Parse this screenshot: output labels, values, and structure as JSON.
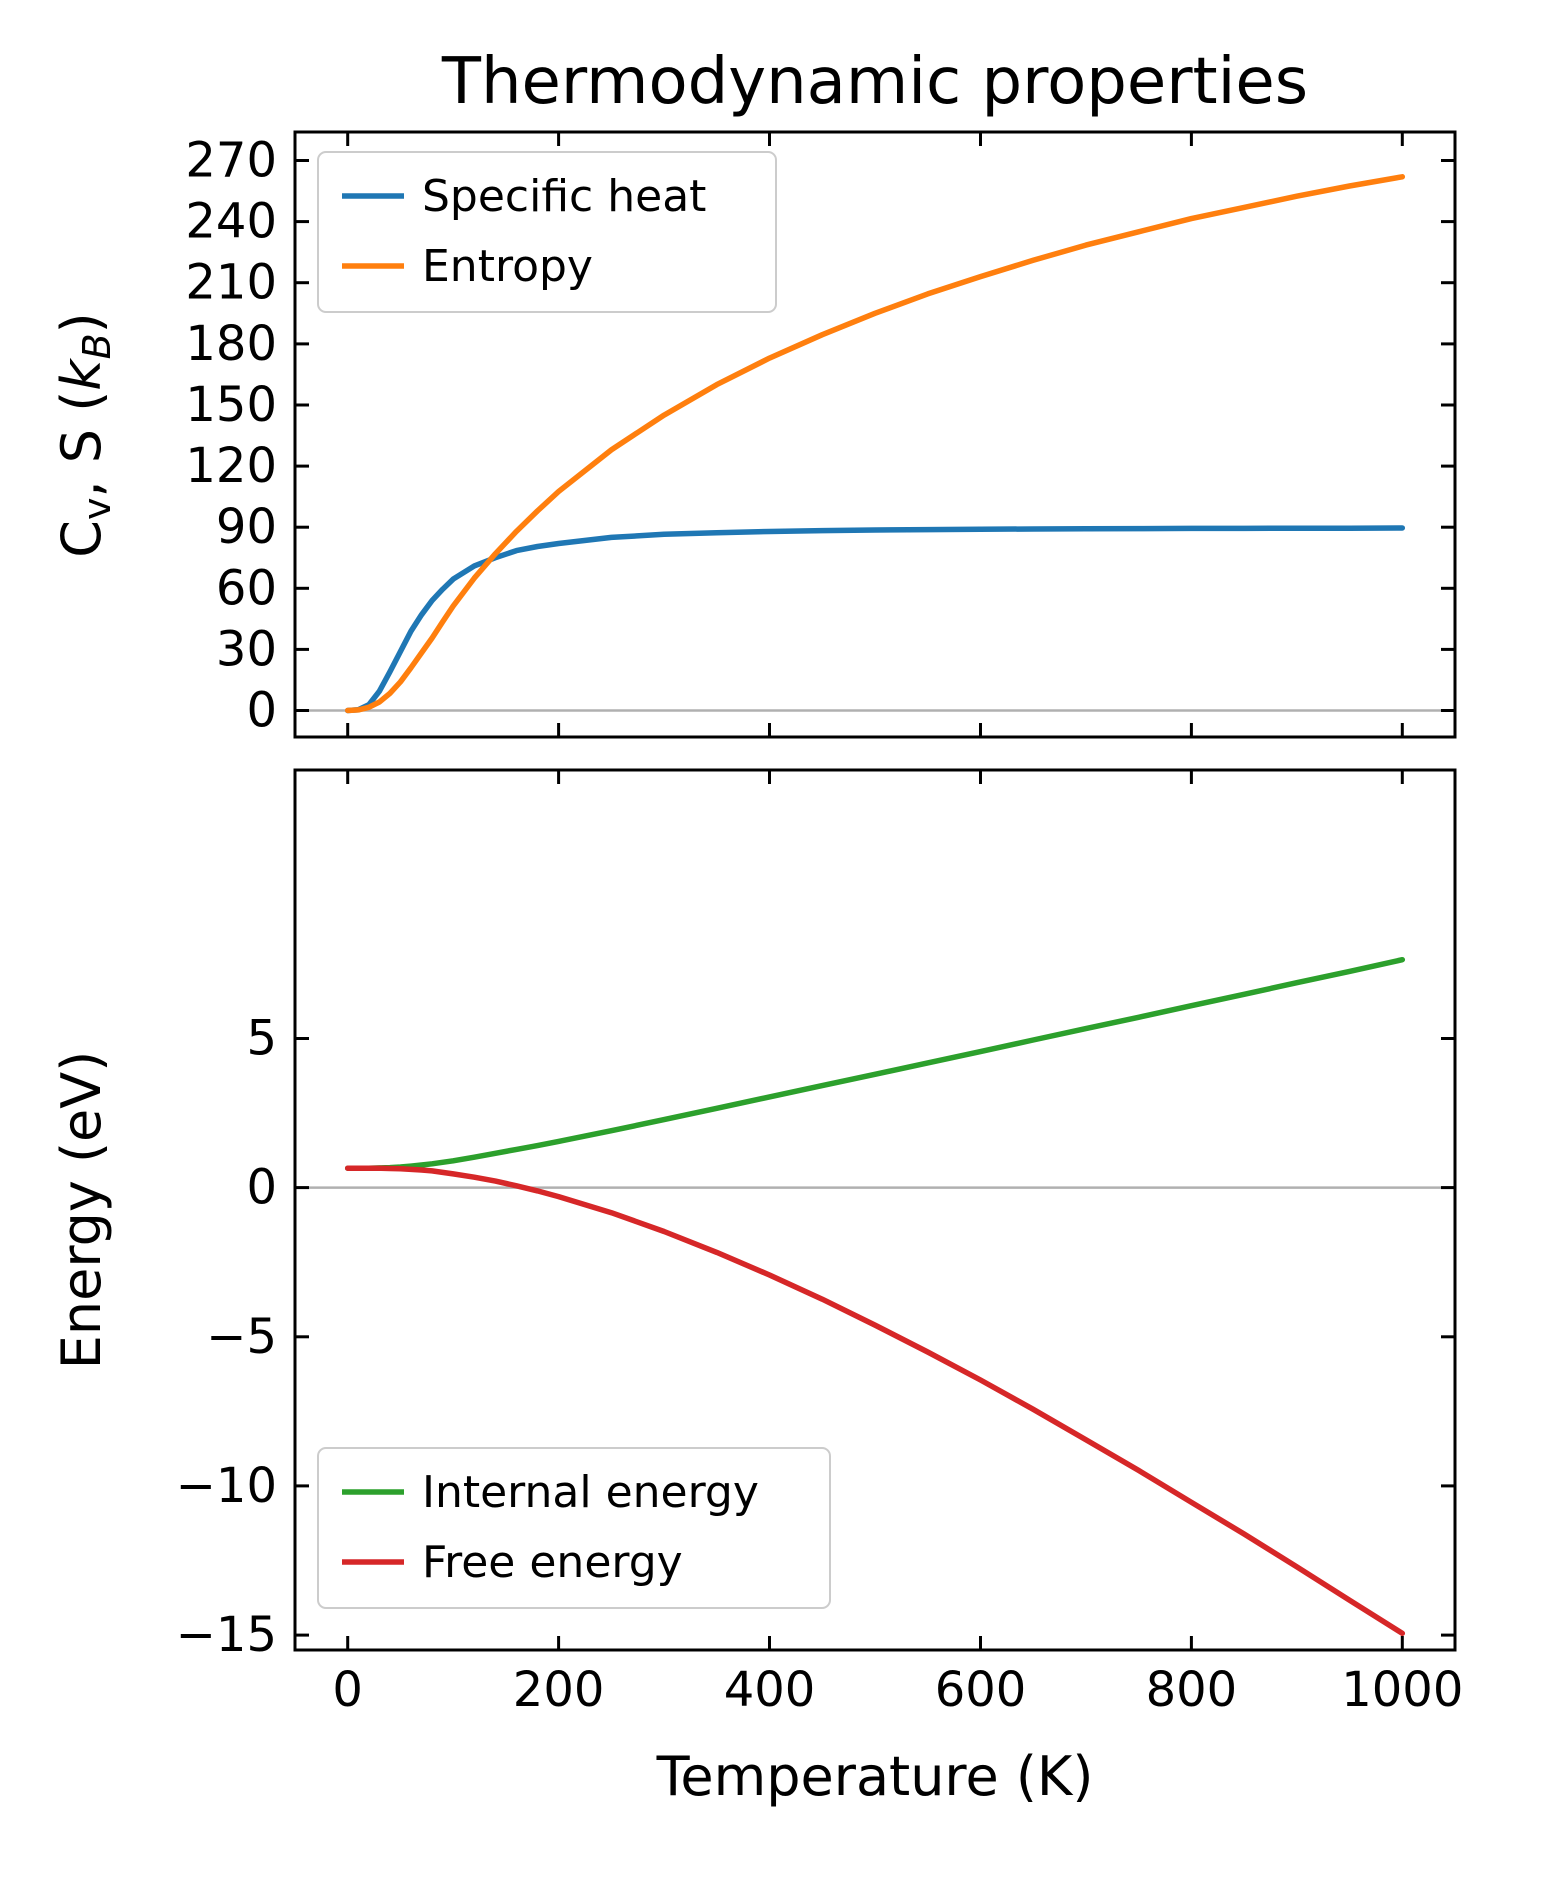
{
  "title": "Thermodynamic properties",
  "colors": {
    "specific_heat": "#1f77b4",
    "entropy": "#ff7f0e",
    "internal_energy": "#2ca02c",
    "free_energy": "#d62728",
    "zero_line": "#b0b0b0",
    "axis": "#000000",
    "legend_border": "#cccccc"
  },
  "chart_data": [
    {
      "type": "line",
      "title": "Thermodynamic properties",
      "xlabel": "",
      "ylabel": "Cv, S (kB)",
      "ylabel_parts": [
        {
          "t": "C"
        },
        {
          "t": "v",
          "sub": true
        },
        {
          "t": ", S ("
        },
        {
          "t": "k",
          "italic": true
        },
        {
          "t": "B",
          "sub": true,
          "italic": true
        },
        {
          "t": ")"
        }
      ],
      "x": [
        0,
        10,
        20,
        30,
        40,
        50,
        60,
        70,
        80,
        90,
        100,
        120,
        140,
        160,
        180,
        200,
        250,
        300,
        350,
        400,
        450,
        500,
        550,
        600,
        650,
        700,
        750,
        800,
        850,
        900,
        950,
        1000
      ],
      "series": [
        {
          "name": "Specific heat",
          "color": "#1f77b4",
          "values": [
            0,
            0.4,
            2.8,
            9.5,
            19,
            29,
            39,
            47,
            54,
            59.5,
            64.5,
            71,
            75,
            78.5,
            80.5,
            82,
            85,
            86.5,
            87.3,
            87.9,
            88.3,
            88.6,
            88.8,
            89,
            89.1,
            89.2,
            89.3,
            89.4,
            89.4,
            89.5,
            89.5,
            89.6
          ]
        },
        {
          "name": "Entropy",
          "color": "#ff7f0e",
          "values": [
            0,
            0.3,
            1.6,
            4.2,
            8.4,
            14.1,
            21,
            28.3,
            35.6,
            43.5,
            51.3,
            65,
            77,
            88,
            98,
            107.5,
            128,
            145,
            160,
            173,
            184.5,
            195,
            204.5,
            213,
            221,
            228.5,
            235,
            241.5,
            247,
            252.5,
            257.5,
            262
          ]
        }
      ],
      "xlim": [
        -50,
        1050
      ],
      "ylim": [
        -13,
        284
      ],
      "xticks": [
        0,
        200,
        400,
        600,
        800,
        1000
      ],
      "xtick_labels_visible": false,
      "yticks": [
        0,
        30,
        60,
        90,
        120,
        150,
        180,
        210,
        240,
        270
      ],
      "legend_position": "upper left",
      "legend_entries": [
        "Specific heat",
        "Entropy"
      ],
      "zero_line": true,
      "grid": false
    },
    {
      "type": "line",
      "title": "",
      "xlabel": "Temperature (K)",
      "ylabel": "Energy (eV)",
      "x": [
        0,
        10,
        20,
        30,
        40,
        50,
        60,
        70,
        80,
        90,
        100,
        120,
        140,
        160,
        180,
        200,
        250,
        300,
        350,
        400,
        450,
        500,
        550,
        600,
        650,
        700,
        750,
        800,
        850,
        900,
        950,
        1000
      ],
      "series": [
        {
          "name": "Internal energy",
          "color": "#2ca02c",
          "values": [
            0.65,
            0.65,
            0.65,
            0.66,
            0.67,
            0.69,
            0.72,
            0.76,
            0.8,
            0.85,
            0.9,
            1.02,
            1.15,
            1.28,
            1.41,
            1.55,
            1.91,
            2.28,
            2.66,
            3.04,
            3.42,
            3.8,
            4.18,
            4.56,
            4.95,
            5.33,
            5.71,
            6.1,
            6.48,
            6.87,
            7.25,
            7.64
          ]
        },
        {
          "name": "Free energy",
          "color": "#d62728",
          "values": [
            0.65,
            0.65,
            0.65,
            0.65,
            0.64,
            0.63,
            0.61,
            0.59,
            0.56,
            0.51,
            0.46,
            0.35,
            0.22,
            0.06,
            -0.11,
            -0.3,
            -0.84,
            -1.47,
            -2.17,
            -2.93,
            -3.74,
            -4.61,
            -5.51,
            -6.45,
            -7.43,
            -8.45,
            -9.48,
            -10.55,
            -11.61,
            -12.71,
            -13.83,
            -14.94
          ]
        }
      ],
      "xlim": [
        -50,
        1050
      ],
      "ylim": [
        -15.5,
        14
      ],
      "xticks": [
        0,
        200,
        400,
        600,
        800,
        1000
      ],
      "xtick_labels_visible": true,
      "yticks": [
        -15,
        -10,
        -5,
        0,
        5
      ],
      "legend_position": "lower left",
      "legend_entries": [
        "Internal energy",
        "Free energy"
      ],
      "zero_line": true,
      "grid": false
    }
  ]
}
